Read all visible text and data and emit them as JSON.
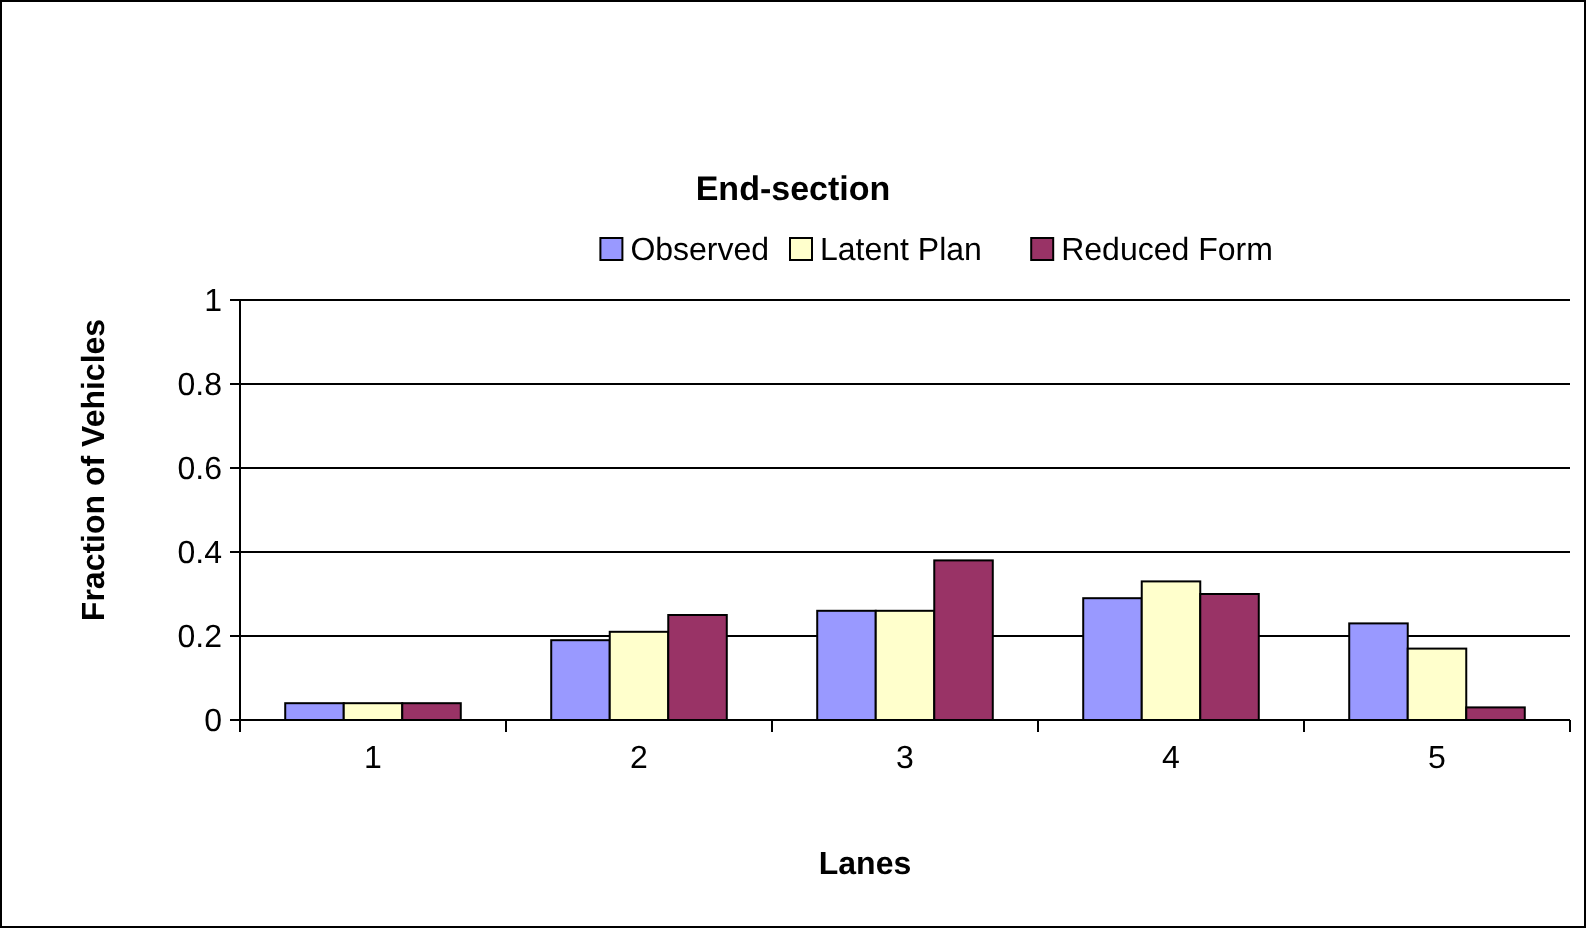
{
  "chart_data": {
    "type": "bar",
    "title": "End-section",
    "xlabel": "Lanes",
    "ylabel": "Fraction of Vehicles",
    "categories": [
      "1",
      "2",
      "3",
      "4",
      "5"
    ],
    "series": [
      {
        "name": "Observed",
        "color": "#9999ff",
        "values": [
          0.04,
          0.19,
          0.26,
          0.29,
          0.23
        ]
      },
      {
        "name": "Latent Plan",
        "color": "#ffffcc",
        "values": [
          0.04,
          0.21,
          0.26,
          0.33,
          0.17
        ]
      },
      {
        "name": "Reduced Form",
        "color": "#993366",
        "values": [
          0.04,
          0.25,
          0.38,
          0.3,
          0.03
        ]
      }
    ],
    "ylim": [
      0,
      1
    ],
    "yticks": [
      0,
      0.2,
      0.4,
      0.6,
      0.8,
      1
    ],
    "grid": "y",
    "legend": "top"
  }
}
